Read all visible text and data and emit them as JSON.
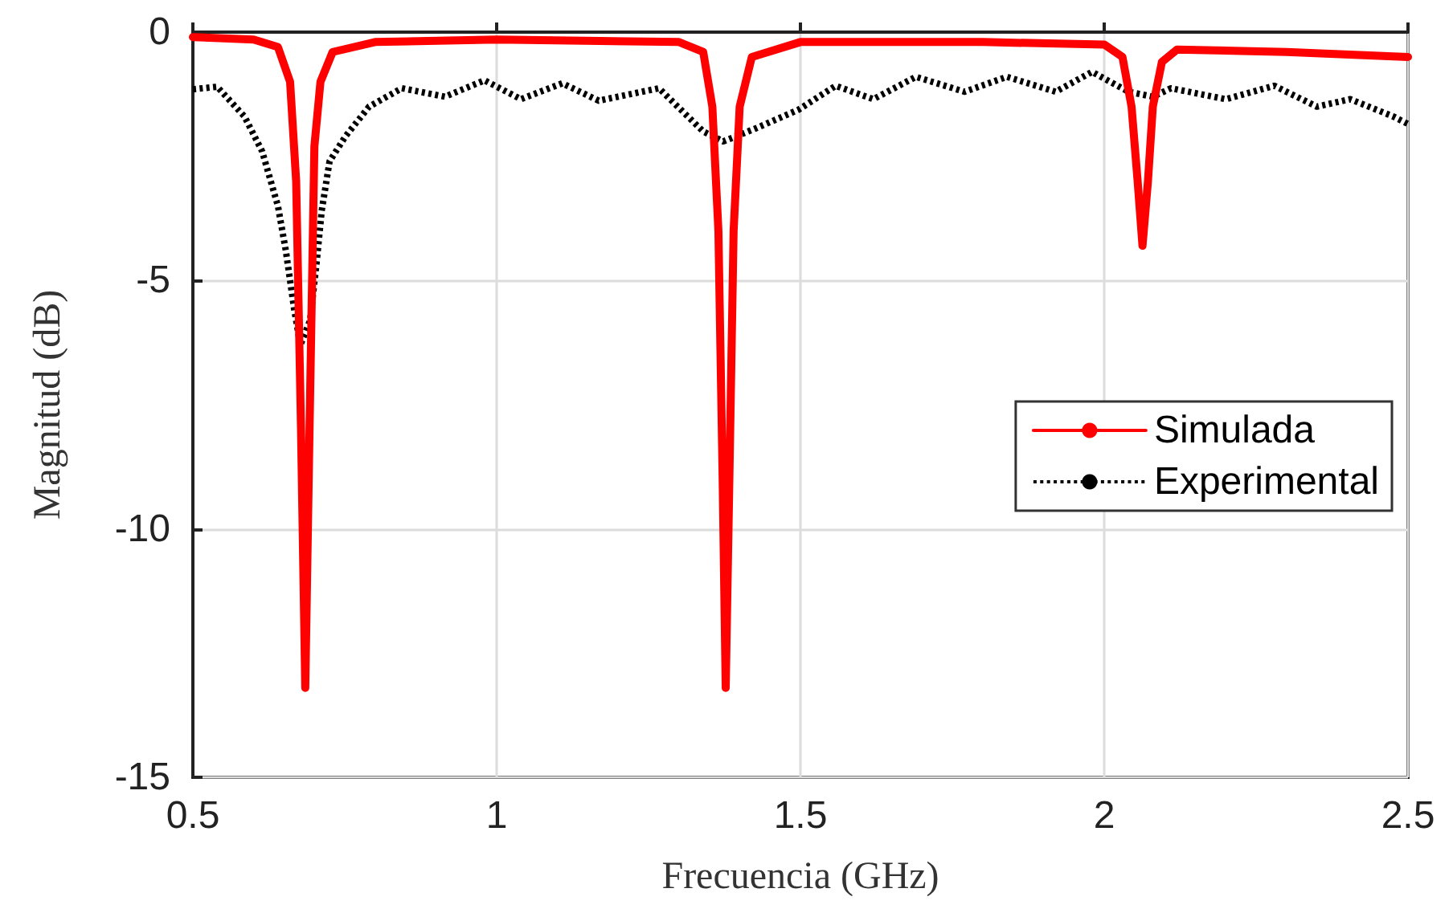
{
  "chart_data": {
    "type": "line",
    "xlabel": "Frecuencia (GHz)",
    "ylabel": "Magnitud (dB)",
    "xlim": [
      0.5,
      2.5
    ],
    "xticks": [
      0.5,
      1,
      1.5,
      2,
      2.5
    ],
    "ylim": [
      -15,
      0
    ],
    "yticks": [
      -15,
      -10,
      -5,
      0
    ],
    "grid": true,
    "legend": "right",
    "marker": "none",
    "series": [
      {
        "name": "Simulada",
        "color": "#ff0000",
        "line_style": "solid",
        "x": [
          0.5,
          0.6,
          0.64,
          0.66,
          0.67,
          0.678,
          0.685,
          0.692,
          0.7,
          0.71,
          0.73,
          0.8,
          1.0,
          1.3,
          1.34,
          1.355,
          1.365,
          1.372,
          1.377,
          1.383,
          1.39,
          1.4,
          1.42,
          1.5,
          1.8,
          2.0,
          2.03,
          2.045,
          2.055,
          2.063,
          2.072,
          2.08,
          2.095,
          2.12,
          2.3,
          2.5
        ],
        "values": [
          -0.1,
          -0.15,
          -0.3,
          -1.0,
          -3,
          -8,
          -13.2,
          -8,
          -2.3,
          -1.0,
          -0.4,
          -0.2,
          -0.15,
          -0.2,
          -0.4,
          -1.5,
          -4,
          -9,
          -13.2,
          -9,
          -4,
          -1.5,
          -0.5,
          -0.2,
          -0.2,
          -0.25,
          -0.5,
          -1.5,
          -3,
          -4.3,
          -3,
          -1.5,
          -0.6,
          -0.35,
          -0.4,
          -0.5
        ]
      },
      {
        "name": "Experimental",
        "color": "#000000",
        "line_style": "dotted",
        "x": [
          0.5,
          0.54,
          0.585,
          0.614,
          0.64,
          0.653,
          0.667,
          0.677,
          0.693,
          0.704,
          0.712,
          0.725,
          0.751,
          0.79,
          0.844,
          0.915,
          0.98,
          1.04,
          1.108,
          1.168,
          1.267,
          1.34,
          1.373,
          1.426,
          1.497,
          1.558,
          1.62,
          1.69,
          1.77,
          1.84,
          1.92,
          1.98,
          2.04,
          2.08,
          2.11,
          2.2,
          2.28,
          2.35,
          2.405,
          2.476,
          2.5
        ],
        "values": [
          -1.15,
          -1.1,
          -1.7,
          -2.4,
          -3.5,
          -4.4,
          -5.6,
          -6.3,
          -5.8,
          -4.6,
          -3.6,
          -2.6,
          -2.1,
          -1.5,
          -1.13,
          -1.3,
          -0.97,
          -1.35,
          -1.03,
          -1.38,
          -1.13,
          -2.0,
          -2.2,
          -1.94,
          -1.56,
          -1.08,
          -1.35,
          -0.9,
          -1.2,
          -0.9,
          -1.2,
          -0.8,
          -1.2,
          -1.3,
          -1.13,
          -1.35,
          -1.08,
          -1.5,
          -1.35,
          -1.7,
          -1.85
        ]
      }
    ]
  }
}
